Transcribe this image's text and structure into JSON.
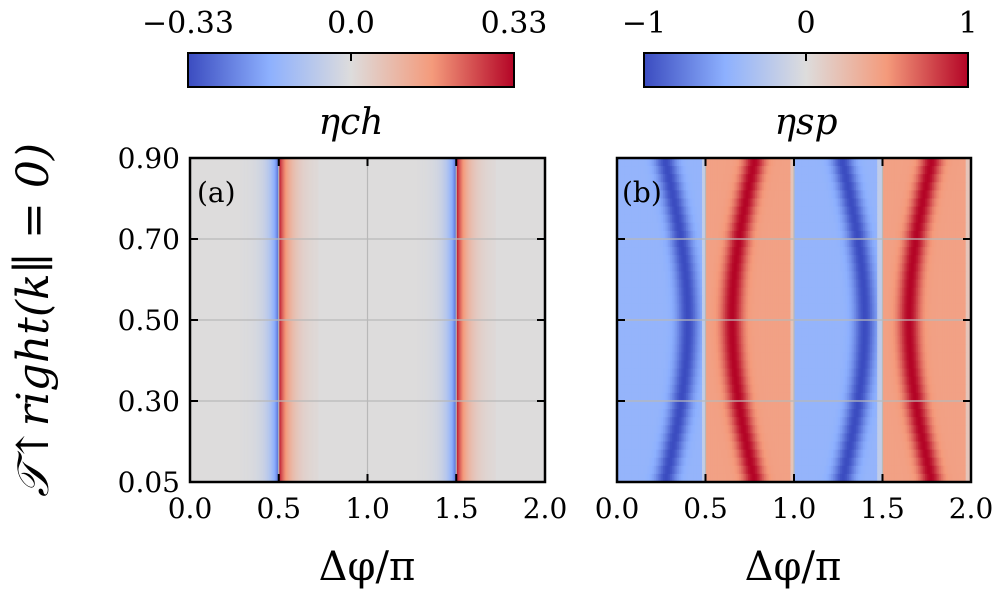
{
  "chart_data": [
    {
      "type": "heatmap",
      "panel_label": "(a)",
      "xlabel": "Δφ/π",
      "ylabel": "𝒯↑right(k∥ = 0)",
      "x_ticks": [
        "0.0",
        "0.5",
        "1.0",
        "1.5",
        "2.0"
      ],
      "y_ticks": [
        "0.90",
        "0.70",
        "0.50",
        "0.30",
        "0.05"
      ],
      "xlim": [
        0,
        2
      ],
      "ylim": [
        0.05,
        0.9
      ],
      "grid": true,
      "colorbar": {
        "label": "ηch",
        "ticks": [
          "−0.33",
          "0.0",
          "0.33"
        ],
        "range": [
          -0.33,
          0.33
        ],
        "colormap": "coolwarm",
        "placement": "top"
      },
      "features": [
        {
          "x": 0.5,
          "description_side_left": "negative",
          "side_right": "positive"
        },
        {
          "x": 1.5,
          "description_side_left": "negative",
          "side_right": "positive"
        }
      ],
      "background_value": 0.0
    },
    {
      "type": "heatmap",
      "panel_label": "(b)",
      "xlabel": "Δφ/π",
      "x_ticks": [
        "0.0",
        "0.5",
        "1.0",
        "1.5",
        "2.0"
      ],
      "xlim": [
        0,
        2
      ],
      "ylim": [
        0.05,
        0.9
      ],
      "grid": true,
      "colorbar": {
        "label": "ηsp",
        "ticks": [
          "−1",
          "0",
          "1"
        ],
        "range": [
          -1,
          1
        ],
        "colormap": "coolwarm",
        "placement": "top"
      },
      "pattern": "alternating bands: negative on (0,0.5) and (1,1.5); positive on (0.5,1) and (1.5,2)"
    }
  ],
  "colors": {
    "cool_min": "#3b4cc0",
    "neutral": "#dddcdc",
    "warm_max": "#b40426",
    "grid": "#b8b8b8"
  }
}
